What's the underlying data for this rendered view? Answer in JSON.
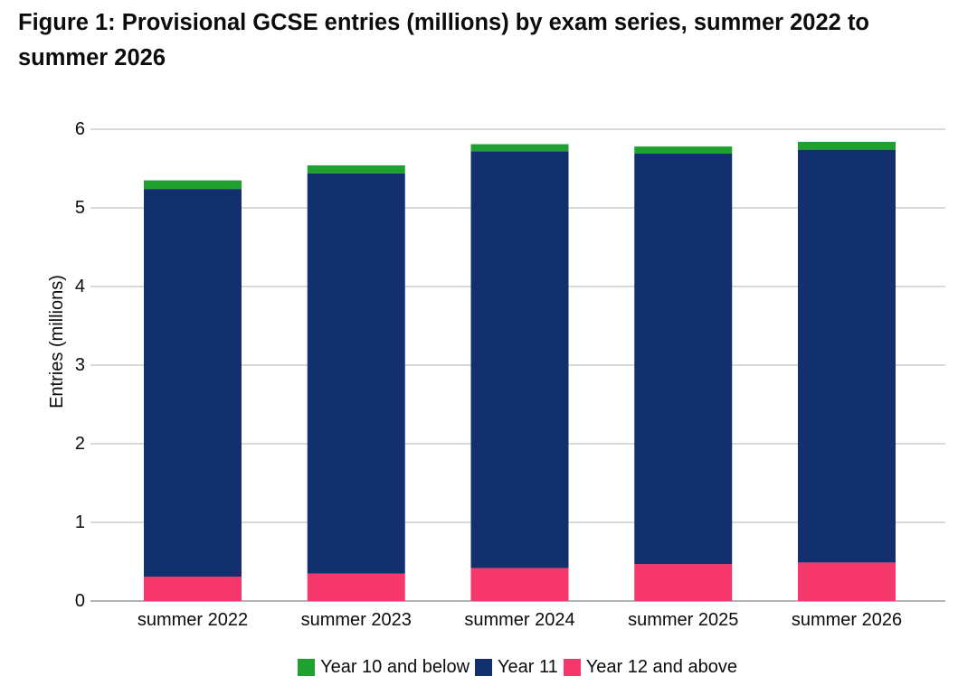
{
  "figure": {
    "title": "Figure 1: Provisional GCSE entries (millions) by exam series, summer 2022 to summer 2026"
  },
  "chart_data": {
    "type": "bar",
    "stacked": true,
    "title": "Figure 1: Provisional GCSE entries (millions) by exam series, summer 2022 to summer 2026",
    "xlabel": "",
    "ylabel": "Entries (millions)",
    "ylim": [
      0,
      6
    ],
    "yticks": [
      "0",
      "1",
      "2",
      "3",
      "4",
      "5",
      "6"
    ],
    "grid": true,
    "legend_position": "bottom",
    "categories": [
      "summer 2022",
      "summer 2023",
      "summer 2024",
      "summer 2025",
      "summer 2026"
    ],
    "series": [
      {
        "name": "Year 12 and above",
        "color": "#f5376b",
        "values": [
          0.31,
          0.35,
          0.42,
          0.47,
          0.49
        ]
      },
      {
        "name": "Year 11",
        "color": "#12306e",
        "values": [
          4.93,
          5.09,
          5.3,
          5.22,
          5.25
        ]
      },
      {
        "name": "Year 10 and below",
        "color": "#1ea12f",
        "values": [
          0.11,
          0.1,
          0.09,
          0.09,
          0.1
        ]
      }
    ],
    "legend_order": [
      "Year 10 and below",
      "Year 11",
      "Year 12 and above"
    ]
  }
}
